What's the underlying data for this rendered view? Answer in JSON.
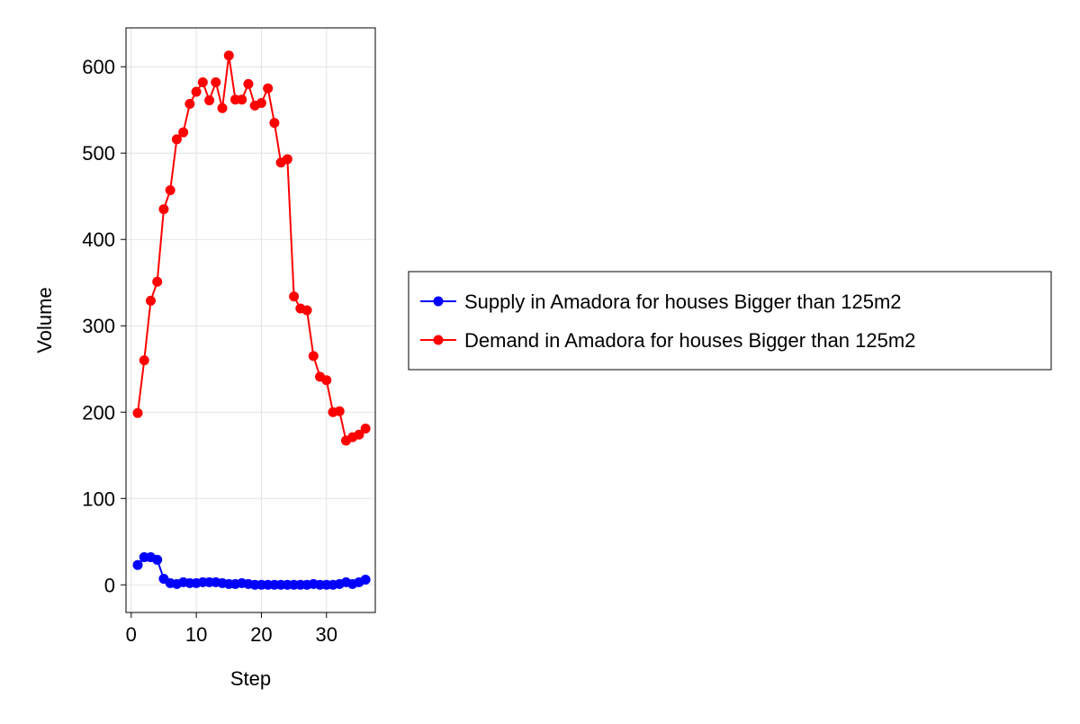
{
  "chart_data": {
    "type": "line",
    "title": "",
    "xlabel": "Step",
    "ylabel": "Volume",
    "xlim": [
      -0.8,
      37.5
    ],
    "ylim": [
      -32,
      645
    ],
    "xticks": [
      0,
      10,
      20,
      30
    ],
    "yticks": [
      0,
      100,
      200,
      300,
      400,
      500,
      600
    ],
    "grid": true,
    "legend": "right-outside",
    "x": [
      1,
      2,
      3,
      4,
      5,
      6,
      7,
      8,
      9,
      10,
      11,
      12,
      13,
      14,
      15,
      16,
      17,
      18,
      19,
      20,
      21,
      22,
      23,
      24,
      25,
      26,
      27,
      28,
      29,
      30,
      31,
      32,
      33,
      34,
      35,
      36
    ],
    "series": [
      {
        "name": "Supply in Amadora for houses Bigger than 125m2",
        "color": "#0000ff",
        "values": [
          23,
          32,
          32,
          29,
          7,
          2,
          1,
          3,
          2,
          2,
          3,
          3,
          3,
          2,
          1,
          1,
          2,
          1,
          0,
          0,
          0,
          0,
          0,
          0,
          0,
          0,
          0,
          1,
          0,
          0,
          0,
          1,
          3,
          1,
          3,
          6
        ]
      },
      {
        "name": "Demand in Amadora for houses Bigger than 125m2",
        "color": "#ff0000",
        "values": [
          199,
          260,
          329,
          351,
          435,
          457,
          516,
          524,
          557,
          571,
          582,
          561,
          582,
          552,
          613,
          562,
          562,
          580,
          555,
          558,
          575,
          535,
          489,
          493,
          334,
          320,
          318,
          265,
          241,
          237,
          200,
          201,
          167,
          171,
          174,
          181
        ]
      }
    ]
  }
}
